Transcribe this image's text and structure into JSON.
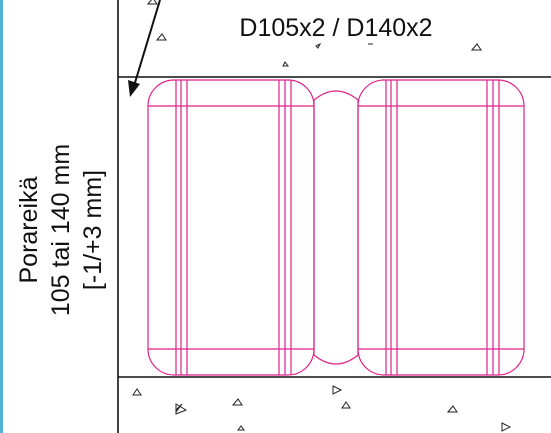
{
  "diagram": {
    "label_top": "D105x2 / D140x2",
    "label_side_line1": "Porareikä",
    "label_side_line2": "105 tai 140 mm",
    "label_side_line3": "[-1/+3 mm]",
    "colors": {
      "outline": "#111111",
      "seal": "#e0218a",
      "accent": "#4fb3d9"
    }
  }
}
